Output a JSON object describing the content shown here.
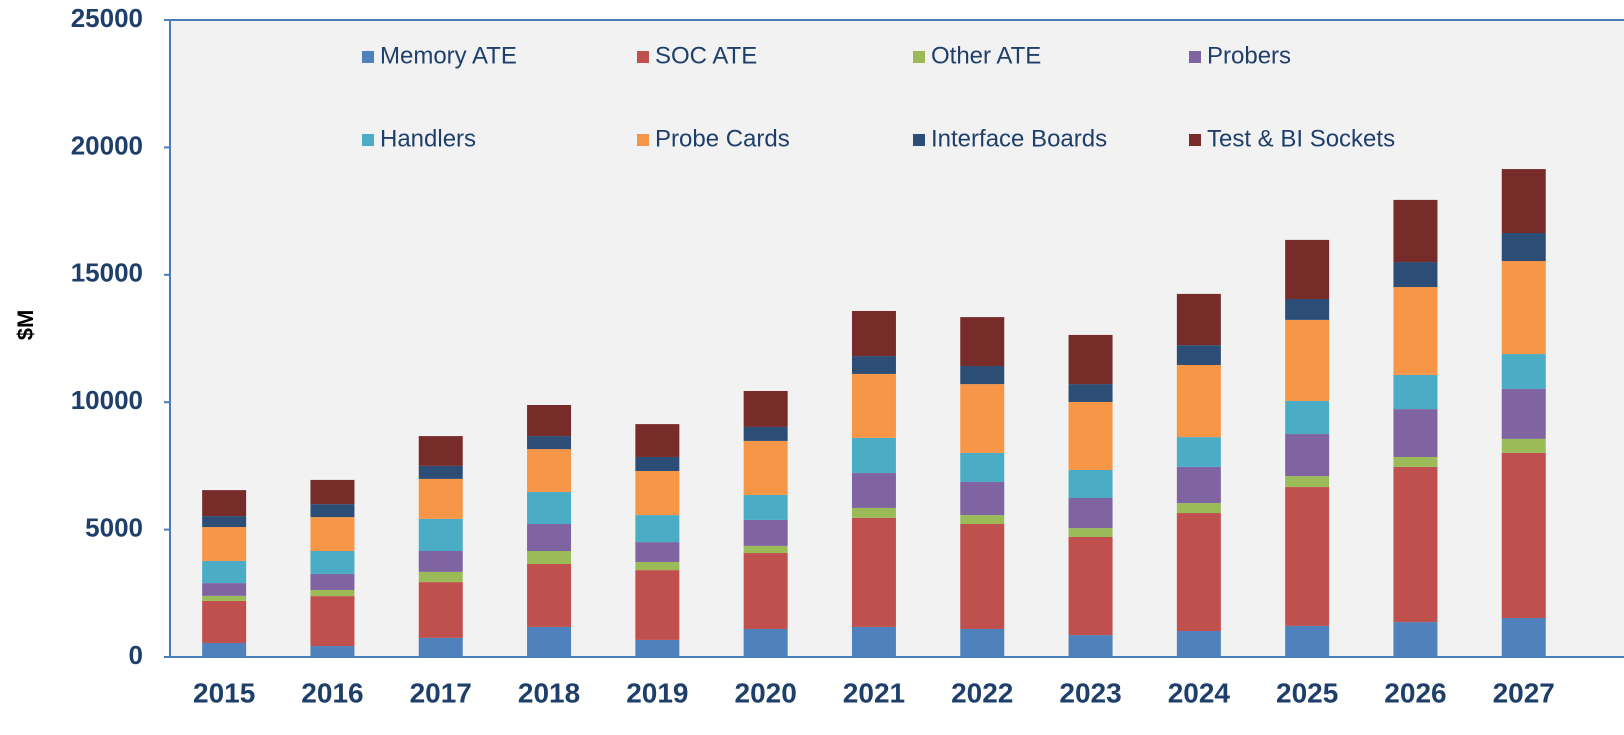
{
  "chart_data": {
    "type": "stacked_bar",
    "y_label": "$M",
    "categories": [
      "2015",
      "2016",
      "2017",
      "2018",
      "2019",
      "2020",
      "2021",
      "2022",
      "2023",
      "2024",
      "2025",
      "2026",
      "2027"
    ],
    "ylim": [
      0,
      25000
    ],
    "yticks": [
      0,
      5000,
      10000,
      15000,
      20000,
      25000
    ],
    "series": [
      {
        "name": "Memory ATE",
        "color": "#4f81bd",
        "values": [
          550,
          430,
          750,
          1180,
          670,
          1100,
          1180,
          1100,
          860,
          1020,
          1220,
          1370,
          1530
        ]
      },
      {
        "name": "SOC ATE",
        "color": "#c0504d",
        "values": [
          1650,
          1960,
          2190,
          2470,
          2740,
          2980,
          4280,
          4120,
          3850,
          4630,
          5450,
          6090,
          6480
        ]
      },
      {
        "name": "Other ATE",
        "color": "#9bbb59",
        "values": [
          200,
          240,
          400,
          510,
          320,
          280,
          390,
          350,
          350,
          390,
          430,
          390,
          550
        ]
      },
      {
        "name": "Probers",
        "color": "#8064a2",
        "values": [
          500,
          630,
          820,
          1060,
          780,
          1020,
          1370,
          1300,
          1180,
          1420,
          1650,
          1880,
          1960
        ]
      },
      {
        "name": "Handlers",
        "color": "#4bacc6",
        "values": [
          870,
          900,
          1260,
          1260,
          1060,
          980,
          1380,
          1140,
          1100,
          1170,
          1300,
          1340,
          1370
        ]
      },
      {
        "name": "Probe Cards",
        "color": "#f79646",
        "values": [
          1330,
          1330,
          1570,
          1680,
          1730,
          2120,
          2510,
          2700,
          2670,
          2830,
          3180,
          3450,
          3650
        ]
      },
      {
        "name": "Interface Boards",
        "color": "#2c4d75",
        "values": [
          430,
          510,
          510,
          510,
          550,
          550,
          700,
          710,
          700,
          780,
          820,
          980,
          1100
        ]
      },
      {
        "name": "Test & BI Sockets",
        "color": "#772c2a",
        "values": [
          1020,
          950,
          1170,
          1220,
          1290,
          1410,
          1770,
          1920,
          1930,
          2010,
          2320,
          2440,
          2510
        ]
      }
    ]
  }
}
